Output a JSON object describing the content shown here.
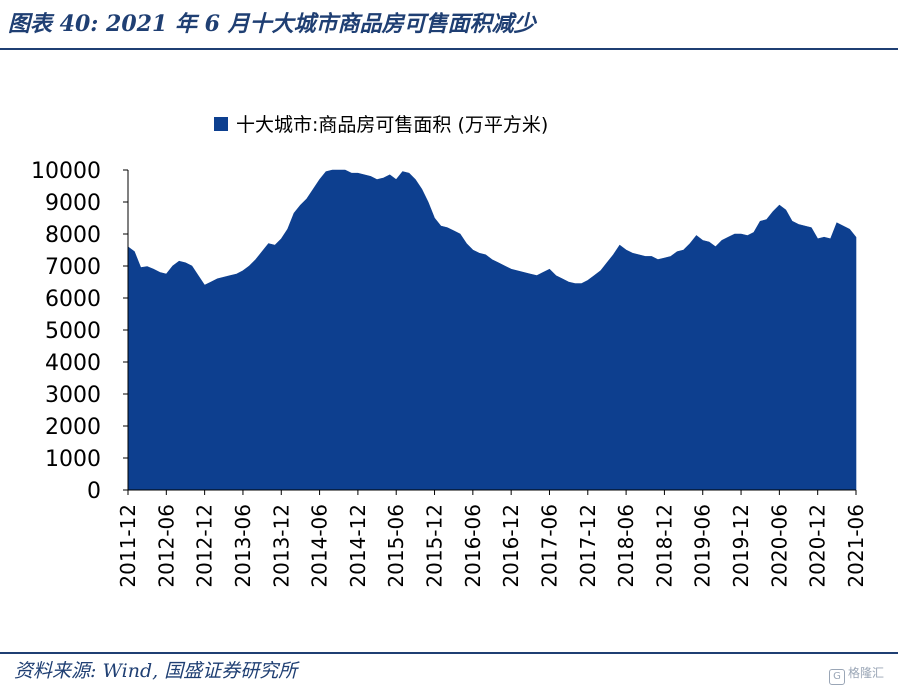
{
  "header": {
    "title": "图表 40:  2021 年 6 月十大城市商品房可售面积减少"
  },
  "footer": {
    "source": "资料来源: Wind, 国盛证券研究所",
    "watermark": "格隆汇",
    "watermark_icon": "G"
  },
  "colors": {
    "fill": "#0d3f8f",
    "accent": "#1f3f73",
    "axis": "#000000"
  },
  "chart_data": {
    "type": "area",
    "title": "",
    "xlabel": "",
    "ylabel": "",
    "legend": {
      "position": "top",
      "label": "十大城市:商品房可售面积 (万平方米)"
    },
    "ylim": [
      0,
      10000
    ],
    "yticks": [
      0,
      1000,
      2000,
      3000,
      4000,
      5000,
      6000,
      7000,
      8000,
      9000,
      10000
    ],
    "xticks": [
      "2011-12",
      "2012-06",
      "2012-12",
      "2013-06",
      "2013-12",
      "2014-06",
      "2014-12",
      "2015-06",
      "2015-12",
      "2016-06",
      "2016-12",
      "2017-06",
      "2017-12",
      "2018-06",
      "2018-12",
      "2019-06",
      "2019-12",
      "2020-06",
      "2020-12",
      "2021-06"
    ],
    "grid": false,
    "series": [
      {
        "name": "十大城市:商品房可售面积 (万平方米)",
        "x": [
          "2011-12",
          "2012-01",
          "2012-02",
          "2012-03",
          "2012-04",
          "2012-05",
          "2012-06",
          "2012-07",
          "2012-08",
          "2012-09",
          "2012-10",
          "2012-11",
          "2012-12",
          "2013-01",
          "2013-02",
          "2013-03",
          "2013-04",
          "2013-05",
          "2013-06",
          "2013-07",
          "2013-08",
          "2013-09",
          "2013-10",
          "2013-11",
          "2013-12",
          "2014-01",
          "2014-02",
          "2014-03",
          "2014-04",
          "2014-05",
          "2014-06",
          "2014-07",
          "2014-08",
          "2014-09",
          "2014-10",
          "2014-11",
          "2014-12",
          "2015-01",
          "2015-02",
          "2015-03",
          "2015-04",
          "2015-05",
          "2015-06",
          "2015-07",
          "2015-08",
          "2015-09",
          "2015-10",
          "2015-11",
          "2015-12",
          "2016-01",
          "2016-02",
          "2016-03",
          "2016-04",
          "2016-05",
          "2016-06",
          "2016-07",
          "2016-08",
          "2016-09",
          "2016-10",
          "2016-11",
          "2016-12",
          "2017-01",
          "2017-02",
          "2017-03",
          "2017-04",
          "2017-05",
          "2017-06",
          "2017-07",
          "2017-08",
          "2017-09",
          "2017-10",
          "2017-11",
          "2017-12",
          "2018-01",
          "2018-02",
          "2018-03",
          "2018-04",
          "2018-05",
          "2018-06",
          "2018-07",
          "2018-08",
          "2018-09",
          "2018-10",
          "2018-11",
          "2018-12",
          "2019-01",
          "2019-02",
          "2019-03",
          "2019-04",
          "2019-05",
          "2019-06",
          "2019-07",
          "2019-08",
          "2019-09",
          "2019-10",
          "2019-11",
          "2019-12",
          "2020-01",
          "2020-02",
          "2020-03",
          "2020-04",
          "2020-05",
          "2020-06",
          "2020-07",
          "2020-08",
          "2020-09",
          "2020-10",
          "2020-11",
          "2020-12",
          "2021-01",
          "2021-02",
          "2021-03",
          "2021-04",
          "2021-05",
          "2021-06"
        ],
        "values": [
          7600,
          7450,
          6950,
          6980,
          6900,
          6800,
          6750,
          7000,
          7150,
          7100,
          7000,
          6700,
          6400,
          6500,
          6600,
          6650,
          6700,
          6750,
          6850,
          7000,
          7200,
          7450,
          7700,
          7650,
          7850,
          8150,
          8650,
          8900,
          9100,
          9400,
          9700,
          9950,
          10000,
          10000,
          10000,
          9900,
          9900,
          9850,
          9800,
          9700,
          9750,
          9850,
          9700,
          9950,
          9900,
          9700,
          9400,
          9000,
          8500,
          8250,
          8200,
          8100,
          8000,
          7700,
          7500,
          7400,
          7350,
          7200,
          7100,
          7000,
          6900,
          6850,
          6800,
          6750,
          6700,
          6800,
          6900,
          6700,
          6600,
          6500,
          6450,
          6450,
          6550,
          6700,
          6850,
          7100,
          7350,
          7650,
          7500,
          7400,
          7350,
          7300,
          7300,
          7200,
          7250,
          7300,
          7450,
          7500,
          7700,
          7950,
          7800,
          7750,
          7600,
          7800,
          7900,
          8000,
          8000,
          7950,
          8050,
          8400,
          8450,
          8700,
          8900,
          8750,
          8400,
          8300,
          8250,
          8200,
          7850,
          7900,
          7850,
          8350,
          8250,
          8150,
          7900
        ]
      }
    ]
  }
}
